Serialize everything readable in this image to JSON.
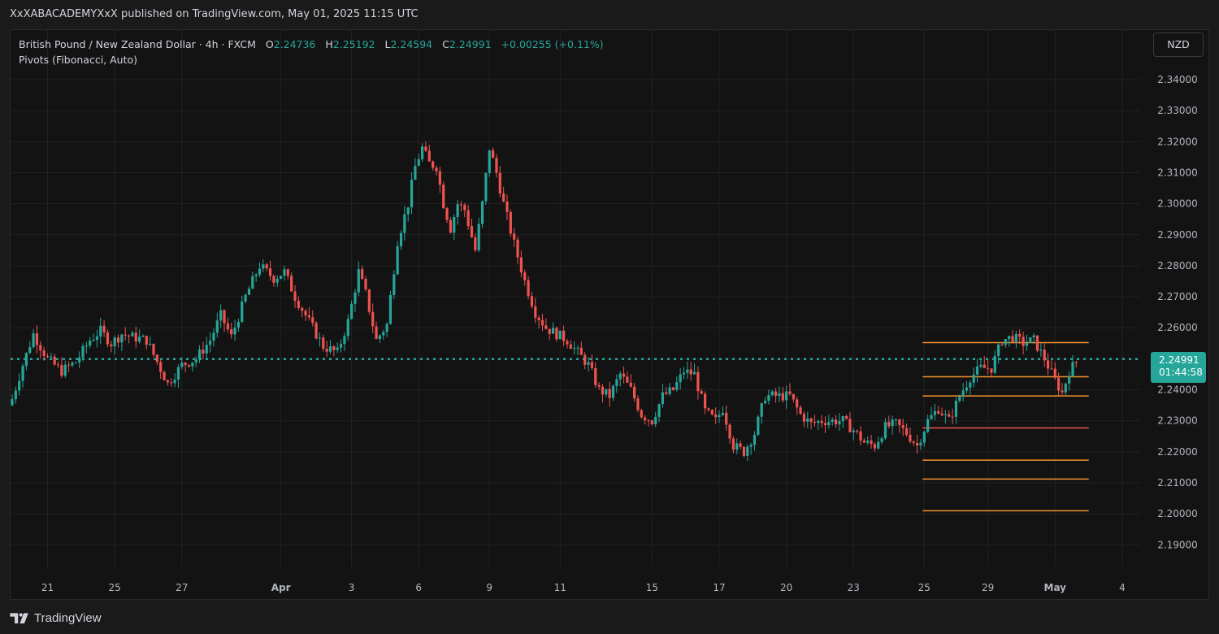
{
  "header": {
    "published_text": "XxXABACADEMYXxX published on TradingView.com, May 01, 2025 11:15 UTC"
  },
  "legend": {
    "symbol": "British Pound / New Zealand Dollar · 4h · FXCM",
    "open_label": "O",
    "open": "2.24736",
    "high_label": "H",
    "high": "2.25192",
    "low_label": "L",
    "low": "2.24594",
    "close_label": "C",
    "close": "2.24991",
    "change": "+0.00255 (+0.11%)",
    "indicator": "Pivots (Fibonacci, Auto)"
  },
  "currency_button": "NZD",
  "price_badge": {
    "price": "2.24991",
    "countdown": "01:44:58"
  },
  "footer": {
    "brand": "TradingView"
  },
  "colors": {
    "up": "#26a69a",
    "down": "#ef5350",
    "pivot_orange": "#f0922b",
    "pivot_red": "#ef5350",
    "grid": "#222222",
    "current_price_line": "#26a69a"
  },
  "chart_data": {
    "type": "candlestick",
    "title": "",
    "symbol": "GBPNZD",
    "timeframe": "4h",
    "y_axis": {
      "ticks": [
        2.19,
        2.2,
        2.21,
        2.22,
        2.23,
        2.24,
        2.25,
        2.26,
        2.27,
        2.28,
        2.29,
        2.3,
        2.31,
        2.32,
        2.33,
        2.34
      ],
      "tick_labels": [
        "2.19000",
        "2.20000",
        "2.21000",
        "2.22000",
        "2.23000",
        "2.24000",
        "2.25000",
        "2.26000",
        "2.27000",
        "2.28000",
        "2.29000",
        "2.30000",
        "2.31000",
        "2.32000",
        "2.33000",
        "2.34000"
      ],
      "range": [
        2.183,
        2.356
      ]
    },
    "x_axis": {
      "labels": [
        "21",
        "25",
        "27",
        "Apr",
        "3",
        "6",
        "9",
        "11",
        "15",
        "17",
        "20",
        "23",
        "25",
        "29",
        "May",
        "4"
      ],
      "bold_labels": [
        "Apr",
        "May"
      ],
      "label_candle_index": [
        10,
        29,
        48,
        76,
        96,
        115,
        135,
        155,
        181,
        200,
        219,
        238,
        258,
        276,
        295,
        314
      ]
    },
    "current_price": 2.24991,
    "pivot_levels": {
      "start_candle_index": 258,
      "end_candle_index": 305,
      "lines": [
        {
          "value": 2.2552,
          "color": "orange"
        },
        {
          "value": 2.2442,
          "color": "orange"
        },
        {
          "value": 2.238,
          "color": "orange"
        },
        {
          "value": 2.2277,
          "color": "red"
        },
        {
          "value": 2.2173,
          "color": "orange"
        },
        {
          "value": 2.2112,
          "color": "orange"
        },
        {
          "value": 2.201,
          "color": "orange"
        }
      ]
    },
    "anchors": [
      [
        0,
        2.237
      ],
      [
        3,
        2.248
      ],
      [
        6,
        2.258
      ],
      [
        10,
        2.25
      ],
      [
        14,
        2.246
      ],
      [
        18,
        2.249
      ],
      [
        22,
        2.256
      ],
      [
        25,
        2.259
      ],
      [
        28,
        2.255
      ],
      [
        31,
        2.258
      ],
      [
        34,
        2.257
      ],
      [
        38,
        2.256
      ],
      [
        41,
        2.249
      ],
      [
        44,
        2.242
      ],
      [
        48,
        2.248
      ],
      [
        52,
        2.25
      ],
      [
        56,
        2.256
      ],
      [
        59,
        2.264
      ],
      [
        62,
        2.257
      ],
      [
        66,
        2.27
      ],
      [
        70,
        2.28
      ],
      [
        74,
        2.276
      ],
      [
        77,
        2.278
      ],
      [
        80,
        2.27
      ],
      [
        84,
        2.262
      ],
      [
        88,
        2.254
      ],
      [
        92,
        2.252
      ],
      [
        95,
        2.262
      ],
      [
        98,
        2.278
      ],
      [
        100,
        2.271
      ],
      [
        103,
        2.256
      ],
      [
        106,
        2.261
      ],
      [
        109,
        2.288
      ],
      [
        112,
        2.3
      ],
      [
        114,
        2.312
      ],
      [
        116,
        2.318
      ],
      [
        118,
        2.313
      ],
      [
        120,
        2.312
      ],
      [
        122,
        2.3
      ],
      [
        124,
        2.292
      ],
      [
        126,
        2.3
      ],
      [
        128,
        2.298
      ],
      [
        131,
        2.285
      ],
      [
        133,
        2.3
      ],
      [
        135,
        2.318
      ],
      [
        137,
        2.31
      ],
      [
        139,
        2.3
      ],
      [
        142,
        2.287
      ],
      [
        145,
        2.275
      ],
      [
        148,
        2.265
      ],
      [
        151,
        2.26
      ],
      [
        154,
        2.258
      ],
      [
        157,
        2.256
      ],
      [
        160,
        2.252
      ],
      [
        163,
        2.248
      ],
      [
        166,
        2.24
      ],
      [
        169,
        2.238
      ],
      [
        172,
        2.245
      ],
      [
        175,
        2.24
      ],
      [
        178,
        2.232
      ],
      [
        181,
        2.23
      ],
      [
        184,
        2.238
      ],
      [
        187,
        2.24
      ],
      [
        190,
        2.246
      ],
      [
        193,
        2.245
      ],
      [
        196,
        2.233
      ],
      [
        199,
        2.23
      ],
      [
        201,
        2.234
      ],
      [
        204,
        2.222
      ],
      [
        207,
        2.22
      ],
      [
        210,
        2.226
      ],
      [
        213,
        2.238
      ],
      [
        216,
        2.238
      ],
      [
        220,
        2.238
      ],
      [
        223,
        2.232
      ],
      [
        226,
        2.229
      ],
      [
        229,
        2.23
      ],
      [
        232,
        2.23
      ],
      [
        235,
        2.23
      ],
      [
        238,
        2.227
      ],
      [
        241,
        2.223
      ],
      [
        244,
        2.222
      ],
      [
        247,
        2.228
      ],
      [
        250,
        2.229
      ],
      [
        253,
        2.226
      ],
      [
        256,
        2.222
      ],
      [
        259,
        2.23
      ],
      [
        262,
        2.234
      ],
      [
        265,
        2.23
      ],
      [
        268,
        2.238
      ],
      [
        271,
        2.244
      ],
      [
        274,
        2.247
      ],
      [
        277,
        2.247
      ],
      [
        280,
        2.256
      ],
      [
        283,
        2.257
      ],
      [
        286,
        2.255
      ],
      [
        289,
        2.256
      ],
      [
        292,
        2.25
      ],
      [
        295,
        2.243
      ],
      [
        297,
        2.239
      ],
      [
        299,
        2.246
      ],
      [
        301,
        2.249
      ]
    ]
  }
}
